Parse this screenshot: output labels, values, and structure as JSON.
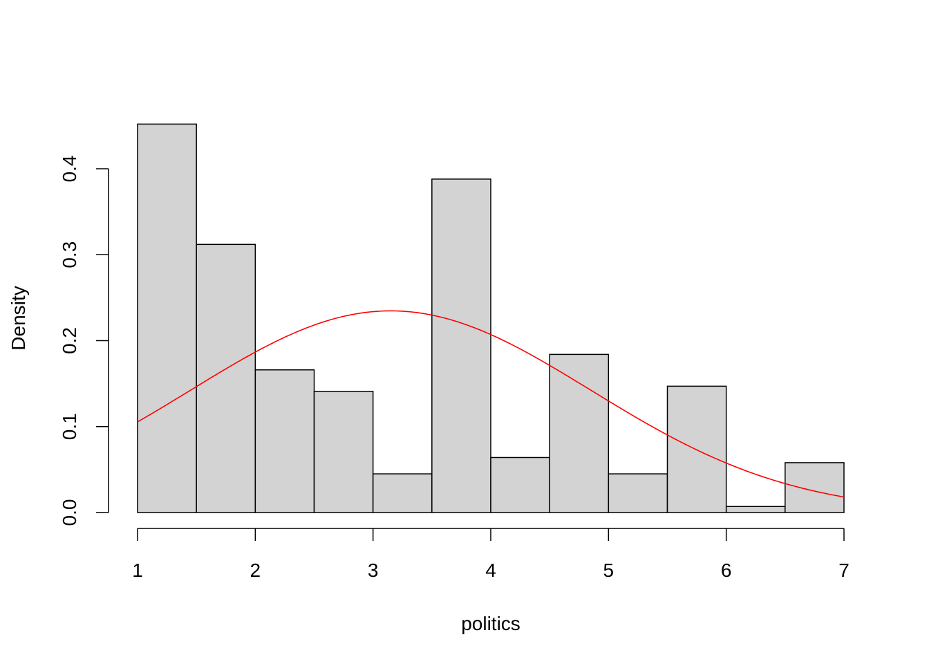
{
  "chart_data": {
    "type": "histogram",
    "xlabel": "politics",
    "ylabel": "Density",
    "xlim": [
      1,
      7
    ],
    "ylim": [
      0,
      0.45
    ],
    "bin_edges": [
      1,
      1.5,
      2,
      2.5,
      3,
      3.5,
      4,
      4.5,
      5,
      5.5,
      6,
      6.5,
      7
    ],
    "densities": [
      0.452,
      0.312,
      0.166,
      0.141,
      0.045,
      0.388,
      0.064,
      0.184,
      0.045,
      0.147,
      0.007,
      0.058
    ],
    "x_ticks": [
      1,
      2,
      3,
      4,
      5,
      6,
      7
    ],
    "x_tick_labels": [
      "1",
      "2",
      "3",
      "4",
      "5",
      "6",
      "7"
    ],
    "y_ticks": [
      0,
      0.1,
      0.2,
      0.3,
      0.4
    ],
    "y_tick_labels": [
      "0.0",
      "0.1",
      "0.2",
      "0.3",
      "0.4"
    ],
    "bar_color": "#d3d3d3",
    "bar_border_color": "#000000",
    "curve": {
      "kind": "normal density",
      "mean": 3.15,
      "sd": 1.7,
      "color": "#ff0000"
    }
  }
}
